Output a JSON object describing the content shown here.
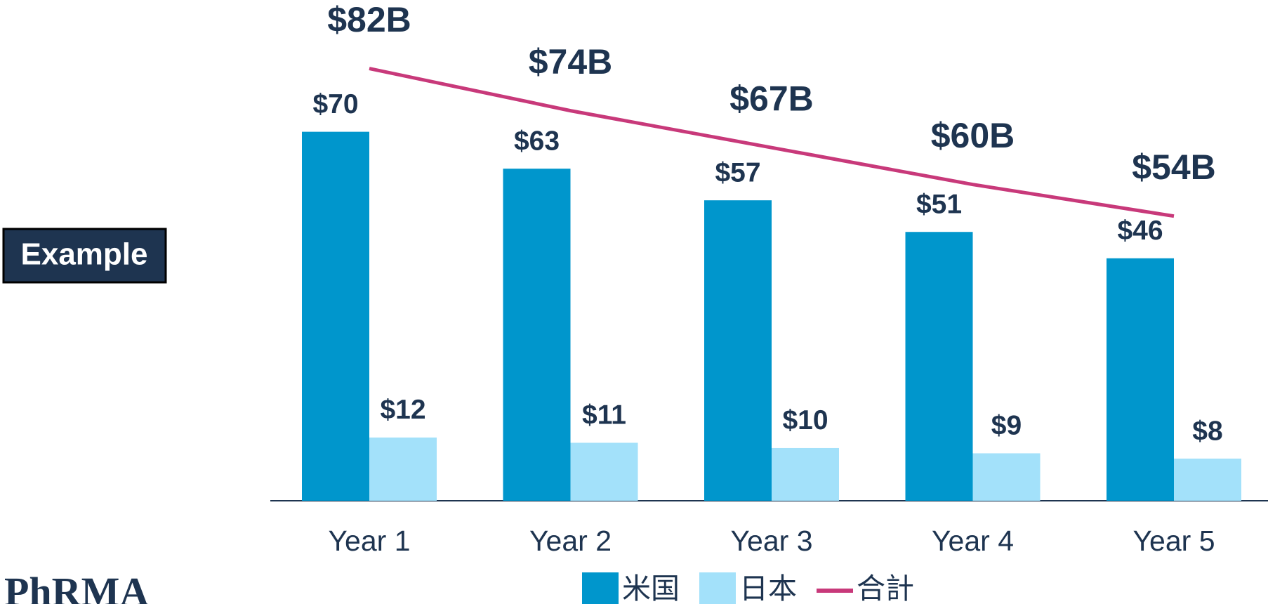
{
  "chart_data": {
    "type": "bar-line",
    "categories": [
      "Year 1",
      "Year 2",
      "Year 3",
      "Year 4",
      "Year 5"
    ],
    "series": [
      {
        "name": "米国",
        "type": "bar",
        "color": "#0096cc",
        "values": [
          70,
          63,
          57,
          51,
          46
        ],
        "value_labels": [
          "$70",
          "$63",
          "$57",
          "$51",
          "$46"
        ]
      },
      {
        "name": "日本",
        "type": "bar",
        "color": "#a3e1fa",
        "values": [
          12,
          11,
          10,
          9,
          8
        ],
        "value_labels": [
          "$12",
          "$11",
          "$10",
          "$9",
          "$8"
        ]
      },
      {
        "name": "合計",
        "type": "line",
        "color": "#c8397a",
        "values": [
          82,
          74,
          67,
          60,
          54
        ],
        "value_labels": [
          "$82B",
          "$74B",
          "$67B",
          "$60B",
          "$54B"
        ]
      }
    ],
    "ylim": [
      0,
      95
    ],
    "badge": "Example",
    "logo": "PhRMA"
  }
}
